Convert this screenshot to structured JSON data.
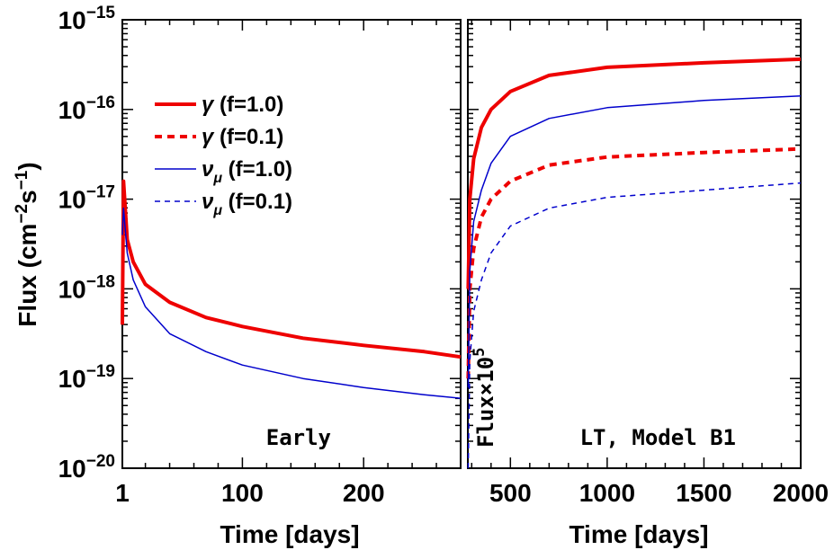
{
  "chart_data": [
    {
      "type": "line",
      "panel": "left",
      "xlabel": "Time [days]",
      "ylabel": "Flux (cm⁻²s⁻¹)",
      "xlim": [
        1,
        280
      ],
      "ylim_log10": [
        -20,
        -15
      ],
      "yscale": "log",
      "xticks": [
        "1",
        "100",
        "200"
      ],
      "xtick_values": [
        1,
        100,
        200
      ],
      "yticks": [
        {
          "base": "10",
          "exp": "−20",
          "value": -20
        },
        {
          "base": "10",
          "exp": "−19",
          "value": -19
        },
        {
          "base": "10",
          "exp": "−18",
          "value": -18
        },
        {
          "base": "10",
          "exp": "−17",
          "value": -17
        },
        {
          "base": "10",
          "exp": "−16",
          "value": -16
        },
        {
          "base": "10",
          "exp": "−15",
          "value": -15
        }
      ],
      "annotation": "Early",
      "legend": [
        {
          "symbol": "γ",
          "text": " (f=1.0)",
          "color": "#ee0000",
          "style": "solid-thick"
        },
        {
          "symbol": "γ",
          "text": " (f=0.1)",
          "color": "#ee0000",
          "style": "dashed-thick"
        },
        {
          "symbol": "ν",
          "sub": "μ",
          "text": " (f=1.0)",
          "color": "#0000cc",
          "style": "solid-thin"
        },
        {
          "symbol": "ν",
          "sub": "μ",
          "text": " (f=0.1)",
          "color": "#0000cc",
          "style": "dashed-thin"
        }
      ],
      "series": [
        {
          "color": "#ee0000",
          "width": 4,
          "dash": "",
          "x": [
            1,
            2,
            5,
            10,
            20,
            40,
            70,
            100,
            150,
            200,
            250,
            280
          ],
          "y": [
            -18.4,
            -16.8,
            -17.45,
            -17.7,
            -17.95,
            -18.15,
            -18.32,
            -18.42,
            -18.55,
            -18.63,
            -18.7,
            -18.76
          ]
        },
        {
          "color": "#0000cc",
          "width": 1.5,
          "dash": "",
          "x": [
            1,
            2,
            5,
            10,
            20,
            40,
            70,
            100,
            150,
            200,
            250,
            280
          ],
          "y": [
            -17.4,
            -17.1,
            -17.6,
            -17.9,
            -18.2,
            -18.5,
            -18.7,
            -18.85,
            -19.0,
            -19.1,
            -19.18,
            -19.22
          ]
        }
      ]
    },
    {
      "type": "line",
      "panel": "right",
      "xlabel": "Time [days]",
      "xlim": [
        280,
        2000
      ],
      "ylim_log10": [
        -20,
        -15
      ],
      "yscale": "log",
      "xticks": [
        "500",
        "1000",
        "1500",
        "2000"
      ],
      "xtick_values": [
        500,
        1000,
        1500,
        2000
      ],
      "annotation": "LT, Model B1",
      "vertical_label": {
        "base": "Flux×10",
        "exp": "5"
      },
      "series": [
        {
          "color": "#ee0000",
          "width": 4,
          "dash": "",
          "x": [
            282,
            290,
            310,
            350,
            400,
            500,
            700,
            1000,
            1500,
            2000
          ],
          "y": [
            -18.0,
            -17.0,
            -16.55,
            -16.2,
            -16.0,
            -15.8,
            -15.62,
            -15.53,
            -15.48,
            -15.44
          ]
        },
        {
          "color": "#ee0000",
          "width": 4,
          "dash": "8,6",
          "x": [
            282,
            290,
            310,
            350,
            400,
            500,
            700,
            1000,
            1500,
            2000
          ],
          "y": [
            -19.0,
            -18.0,
            -17.55,
            -17.2,
            -17.0,
            -16.8,
            -16.62,
            -16.53,
            -16.48,
            -16.44
          ]
        },
        {
          "color": "#0000cc",
          "width": 1.5,
          "dash": "",
          "x": [
            282,
            290,
            310,
            350,
            400,
            500,
            700,
            1000,
            1500,
            2000
          ],
          "y": [
            -19.1,
            -17.8,
            -17.25,
            -16.9,
            -16.6,
            -16.3,
            -16.1,
            -15.98,
            -15.9,
            -15.85
          ]
        },
        {
          "color": "#0000cc",
          "width": 1.5,
          "dash": "6,5",
          "x": [
            282,
            290,
            310,
            350,
            400,
            500,
            700,
            1000,
            1500,
            2000
          ],
          "y": [
            -20.0,
            -18.8,
            -18.25,
            -17.9,
            -17.6,
            -17.3,
            -17.1,
            -16.98,
            -16.9,
            -16.82
          ]
        }
      ]
    }
  ]
}
